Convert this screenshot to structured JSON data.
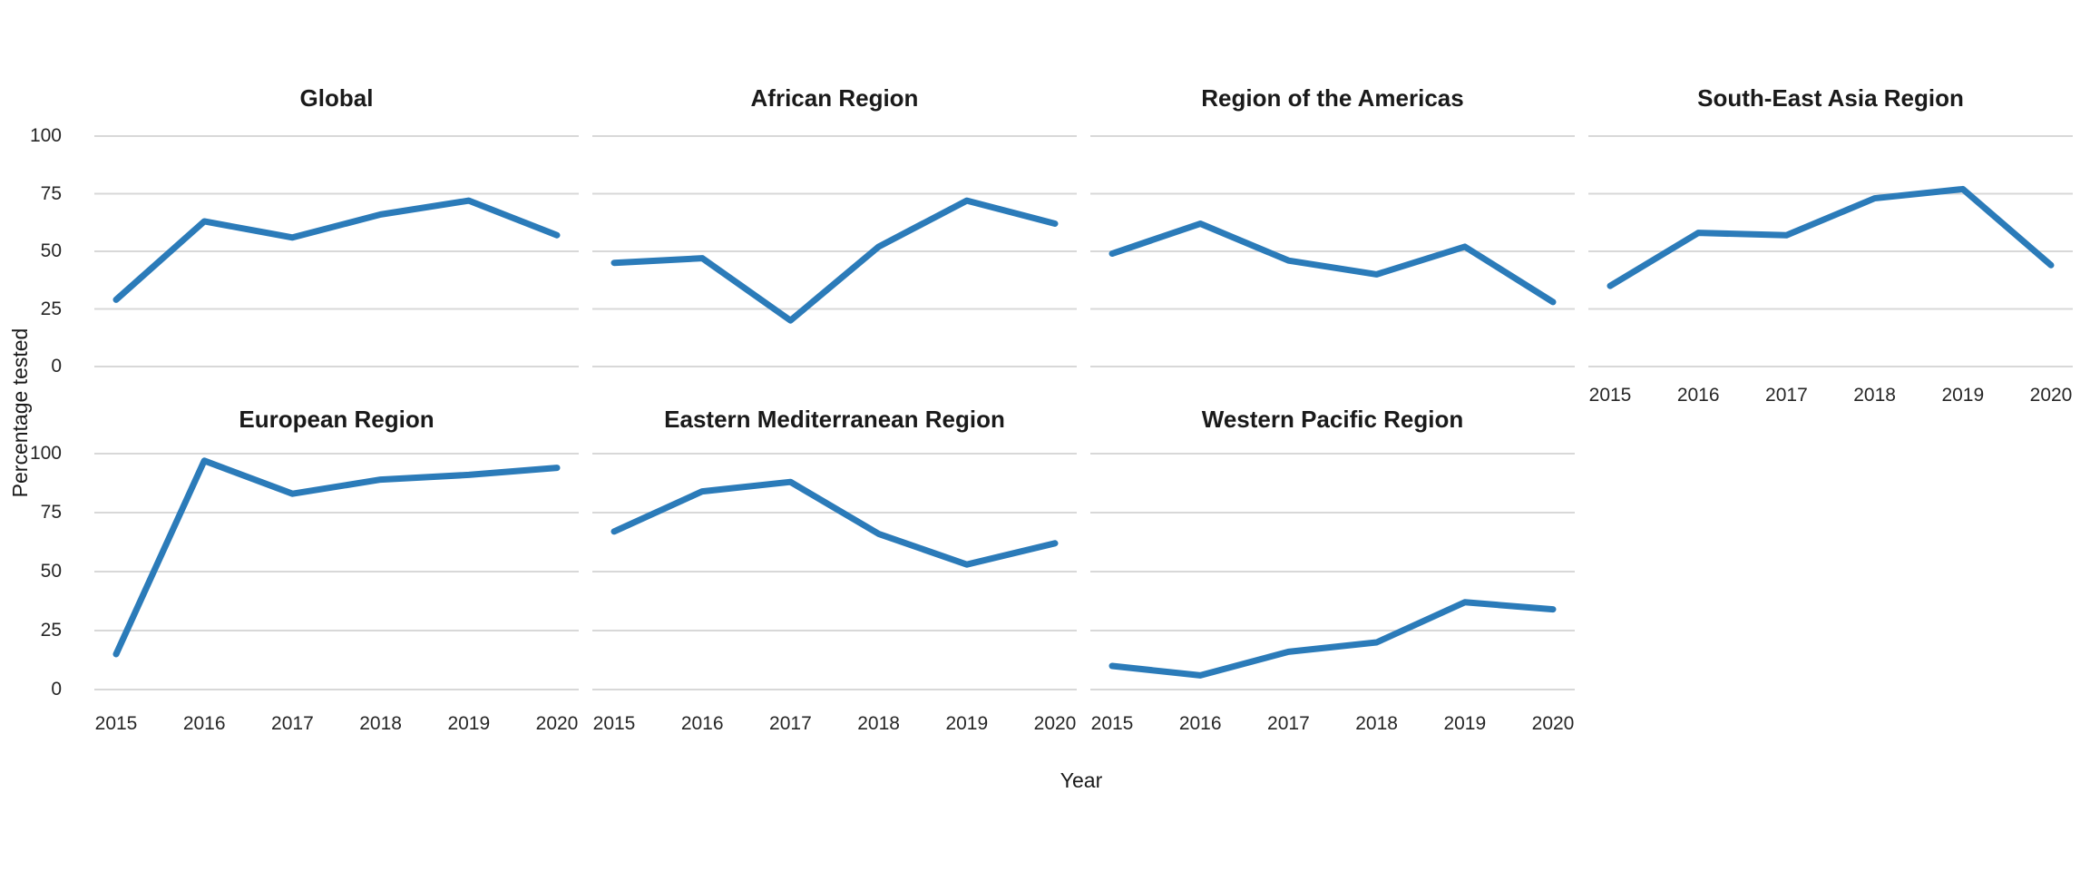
{
  "figure": {
    "line_color": "#2b7bb9",
    "grid_color": "#d8d8d8",
    "background": "#ffffff"
  },
  "chart_data": {
    "type": "line",
    "x": [
      2015,
      2016,
      2017,
      2018,
      2019,
      2020
    ],
    "xlabel": "Year",
    "ylabel": "Percentage tested",
    "ylim": [
      0,
      100
    ],
    "yticks": [
      0,
      25,
      50,
      75,
      100
    ],
    "grid": true,
    "legend": "none",
    "facets": [
      {
        "title": "Global",
        "values": [
          29,
          63,
          56,
          66,
          72,
          57
        ]
      },
      {
        "title": "African Region",
        "values": [
          45,
          47,
          20,
          52,
          72,
          62
        ]
      },
      {
        "title": "Region of the Americas",
        "values": [
          49,
          62,
          46,
          40,
          52,
          28
        ]
      },
      {
        "title": "South-East Asia Region",
        "values": [
          35,
          58,
          57,
          73,
          77,
          44
        ]
      },
      {
        "title": "European Region",
        "values": [
          15,
          97,
          83,
          89,
          91,
          94
        ]
      },
      {
        "title": "Eastern Mediterranean Region",
        "values": [
          67,
          84,
          88,
          66,
          53,
          62
        ]
      },
      {
        "title": "Western Pacific Region",
        "values": [
          10,
          6,
          16,
          20,
          37,
          34
        ]
      }
    ]
  }
}
